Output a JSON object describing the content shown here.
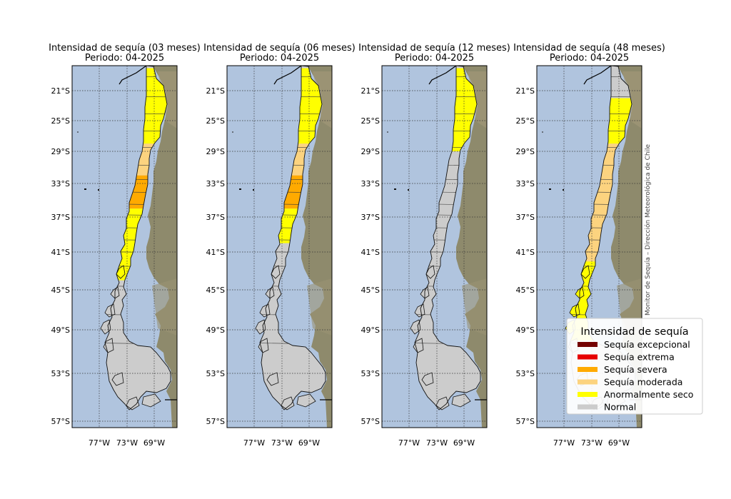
{
  "panels": [
    {
      "title": "Intensidad de sequía (03 meses)",
      "period": "Periodo: 04-2025",
      "drought_by_region": [
        {
          "region_lat": "18-28°S",
          "category": "Anormalmente seco"
        },
        {
          "region_lat": "28-32°S",
          "category": "Sequía moderada"
        },
        {
          "region_lat": "32-36°S",
          "category": "Sequía severa"
        },
        {
          "region_lat": "36-44°S",
          "category": "Anormalmente seco"
        },
        {
          "region_lat": "44-56°S",
          "category": "Normal"
        }
      ]
    },
    {
      "title": "Intensidad de sequía (06 meses)",
      "period": "Periodo: 04-2025",
      "drought_by_region": [
        {
          "region_lat": "18-28°S",
          "category": "Anormalmente seco"
        },
        {
          "region_lat": "28-32°S",
          "category": "Sequía moderada"
        },
        {
          "region_lat": "32-36°S",
          "category": "Sequía severa"
        },
        {
          "region_lat": "36-40°S",
          "category": "Anormalmente seco"
        },
        {
          "region_lat": "40-56°S",
          "category": "Normal"
        }
      ]
    },
    {
      "title": "Intensidad de sequía (12 meses)",
      "period": "Periodo: 04-2025",
      "drought_by_region": [
        {
          "region_lat": "18-29°S",
          "category": "Anormalmente seco"
        },
        {
          "region_lat": "29-56°S",
          "category": "Normal"
        }
      ]
    },
    {
      "title": "Intensidad de sequía (48 meses)",
      "period": "Periodo: 04-2025",
      "drought_by_region": [
        {
          "region_lat": "18-22°S",
          "category": "Normal"
        },
        {
          "region_lat": "22-28°S",
          "category": "Anormalmente seco"
        },
        {
          "region_lat": "28-32°S",
          "category": "Sequía moderada"
        },
        {
          "region_lat": "32-42°S",
          "category": "Sequía moderada"
        },
        {
          "region_lat": "42-50°S",
          "category": "Anormalmente seco"
        },
        {
          "region_lat": "50-56°S",
          "category": "Normal"
        }
      ]
    }
  ],
  "lat_ticks": [
    "21°S",
    "25°S",
    "29°S",
    "33°S",
    "37°S",
    "41°S",
    "45°S",
    "49°S",
    "53°S",
    "57°S"
  ],
  "lon_ticks": [
    "77°W",
    "73°W",
    "69°W"
  ],
  "legend": {
    "title": "Intensidad de sequía",
    "items": [
      {
        "label": "Sequía excepcional",
        "color": "#730000"
      },
      {
        "label": "Sequía extrema",
        "color": "#e60000"
      },
      {
        "label": "Sequía severa",
        "color": "#ffaa00"
      },
      {
        "label": "Sequía moderada",
        "color": "#fcd37f"
      },
      {
        "label": "Anormalmente seco",
        "color": "#ffff00"
      },
      {
        "label": "Normal",
        "color": "#cccccc"
      }
    ]
  },
  "credit": "Monitor de Sequía – Dirección Meteorológica de Chile",
  "colors": {
    "ocean": "#b0c4de",
    "land": "#8e8a6c",
    "grid": "#333333"
  }
}
